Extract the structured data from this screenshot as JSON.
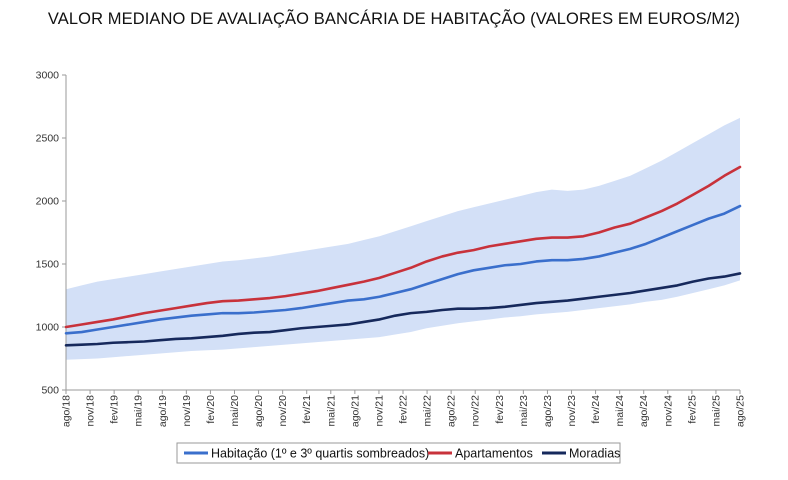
{
  "chart_data": {
    "type": "line",
    "title": "VALOR MEDIANO DE AVALIAÇÃO BANCÁRIA DE HABITAÇÃO (VALORES EM EUROS/M2)",
    "xlabel": "",
    "ylabel": "",
    "ylim": [
      500,
      3000
    ],
    "yticks": [
      500,
      1000,
      1500,
      2000,
      2500,
      3000
    ],
    "x_tick_labels": [
      "ago/18",
      "nov/18",
      "fev/19",
      "mai/19",
      "ago/19",
      "nov/19",
      "fev/20",
      "mai/20",
      "ago/20",
      "nov/20",
      "fev/21",
      "mai/21",
      "ago/21",
      "nov/21",
      "fev/22",
      "mai/22",
      "ago/22",
      "nov/22",
      "fev/23",
      "mai/23",
      "ago/23",
      "nov/23",
      "fev/24",
      "mai/24",
      "ago/24",
      "nov/24",
      "fev/25",
      "mai/25",
      "ago/25"
    ],
    "grid": false,
    "legend_position": "bottom",
    "series": [
      {
        "name": "Habitação (1º e 3º quartis sombreados)",
        "color": "#3a6fcc",
        "values": [
          950,
          960,
          980,
          1000,
          1020,
          1040,
          1060,
          1075,
          1090,
          1100,
          1110,
          1110,
          1115,
          1125,
          1135,
          1150,
          1170,
          1190,
          1210,
          1220,
          1240,
          1270,
          1300,
          1340,
          1380,
          1420,
          1450,
          1470,
          1490,
          1500,
          1520,
          1530,
          1530,
          1540,
          1560,
          1590,
          1620,
          1660,
          1710,
          1760,
          1810,
          1860,
          1900,
          1960
        ]
      },
      {
        "name": "Apartamentos",
        "color": "#c8323b",
        "values": [
          1000,
          1020,
          1040,
          1060,
          1085,
          1110,
          1130,
          1150,
          1170,
          1190,
          1205,
          1210,
          1220,
          1230,
          1245,
          1265,
          1285,
          1310,
          1335,
          1360,
          1390,
          1430,
          1470,
          1520,
          1560,
          1590,
          1610,
          1640,
          1660,
          1680,
          1700,
          1710,
          1710,
          1720,
          1750,
          1790,
          1820,
          1870,
          1920,
          1980,
          2050,
          2120,
          2200,
          2270
        ]
      },
      {
        "name": "Moradias",
        "color": "#16295c",
        "values": [
          855,
          860,
          865,
          875,
          880,
          885,
          895,
          905,
          910,
          920,
          930,
          945,
          955,
          960,
          975,
          990,
          1000,
          1010,
          1020,
          1040,
          1060,
          1090,
          1110,
          1120,
          1135,
          1145,
          1145,
          1150,
          1160,
          1175,
          1190,
          1200,
          1210,
          1225,
          1240,
          1255,
          1270,
          1290,
          1310,
          1330,
          1360,
          1385,
          1400,
          1425
        ]
      },
      {
        "name": "Q1",
        "values": [
          740,
          745,
          750,
          760,
          770,
          780,
          790,
          800,
          810,
          815,
          820,
          830,
          840,
          850,
          860,
          870,
          880,
          890,
          900,
          910,
          920,
          940,
          960,
          990,
          1010,
          1030,
          1045,
          1060,
          1075,
          1085,
          1100,
          1110,
          1120,
          1135,
          1150,
          1165,
          1180,
          1200,
          1215,
          1240,
          1270,
          1300,
          1330,
          1370
        ]
      },
      {
        "name": "Q3",
        "values": [
          1300,
          1330,
          1360,
          1380,
          1400,
          1420,
          1440,
          1460,
          1480,
          1500,
          1520,
          1530,
          1545,
          1560,
          1580,
          1600,
          1620,
          1640,
          1660,
          1690,
          1720,
          1760,
          1800,
          1840,
          1880,
          1920,
          1950,
          1980,
          2010,
          2040,
          2070,
          2090,
          2080,
          2090,
          2120,
          2160,
          2200,
          2260,
          2320,
          2390,
          2460,
          2530,
          2600,
          2660
        ]
      }
    ]
  }
}
